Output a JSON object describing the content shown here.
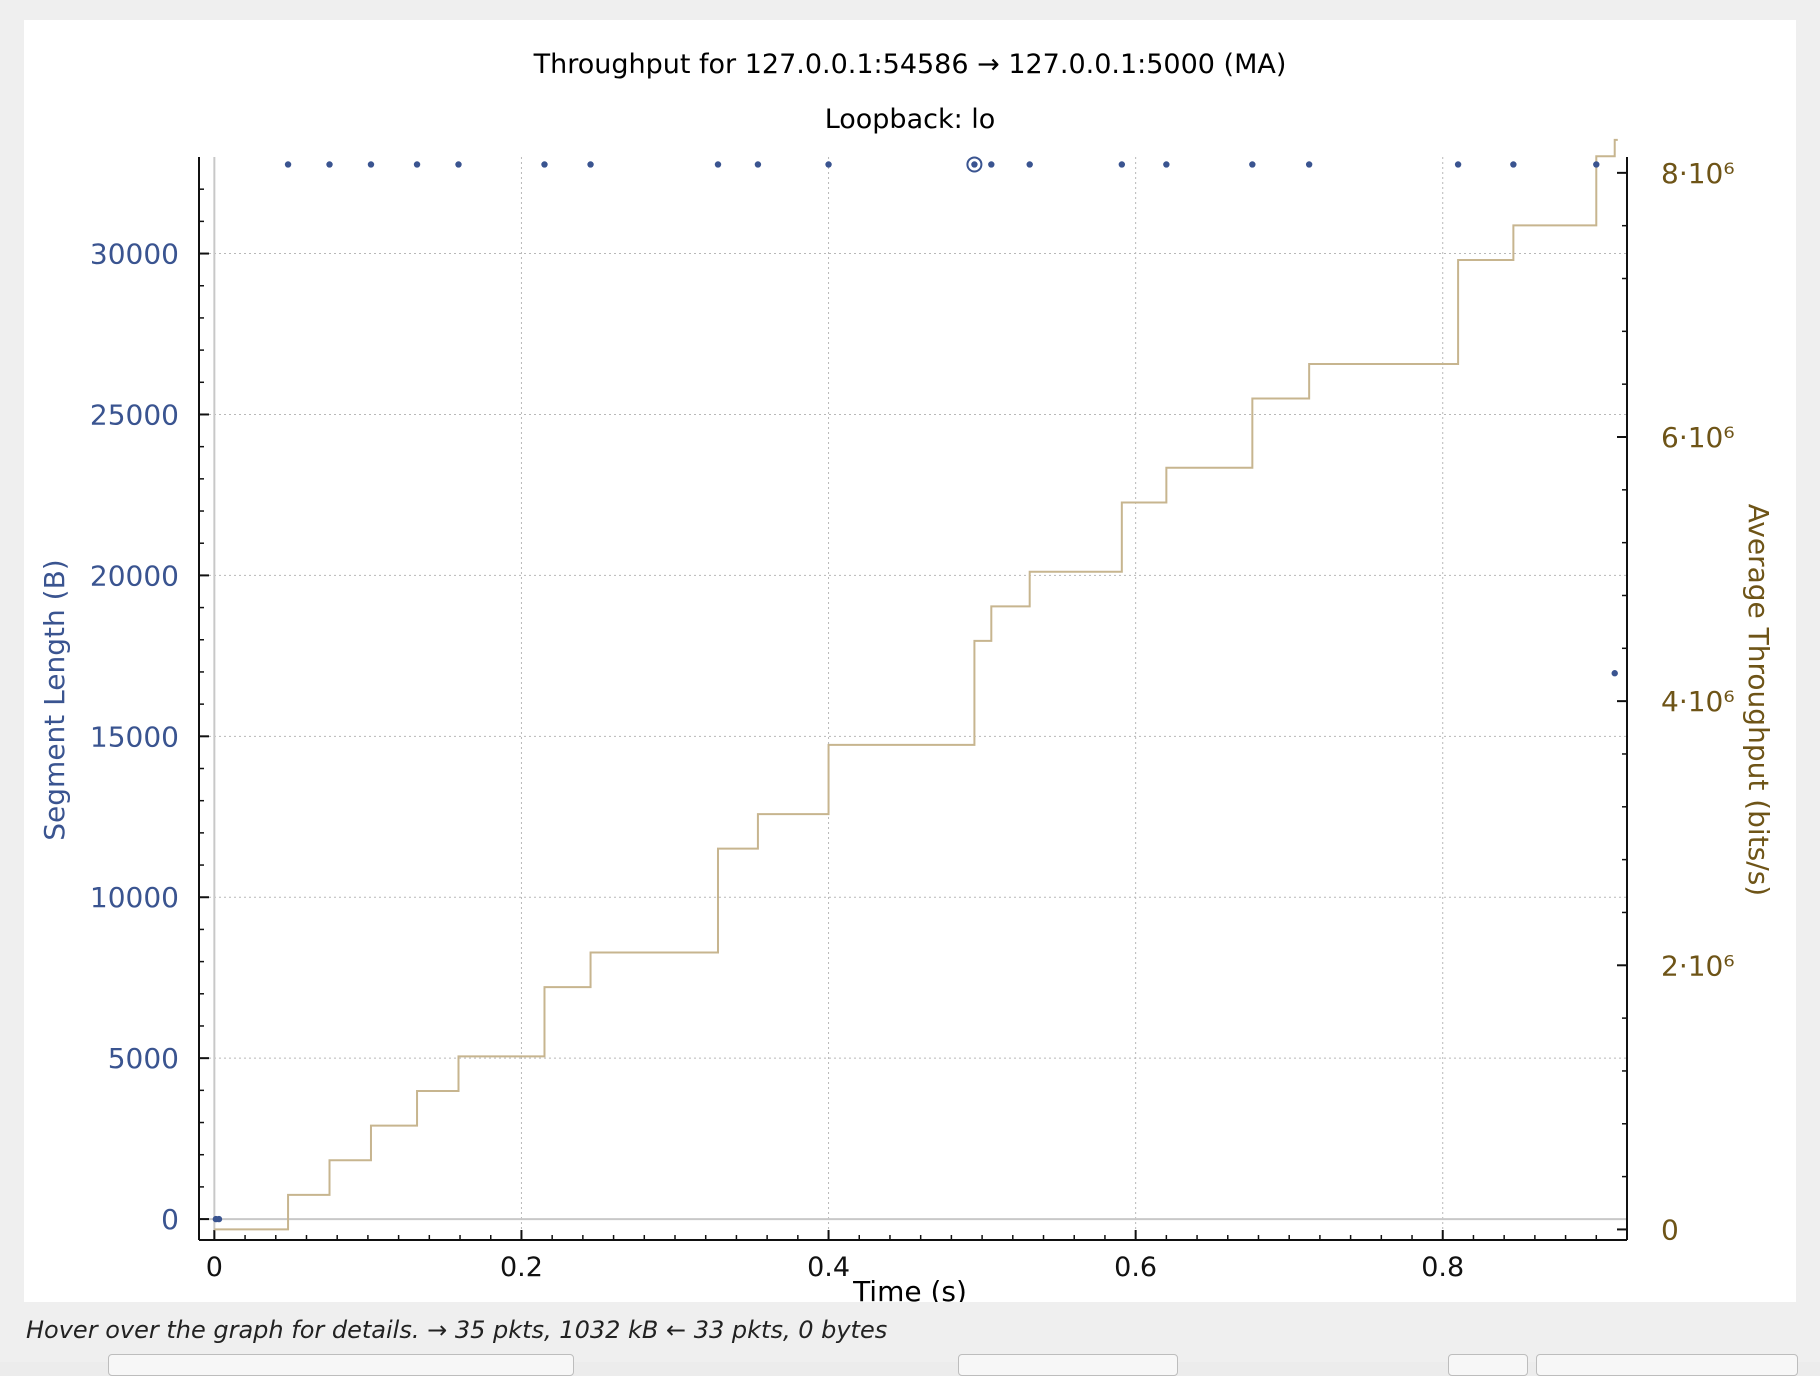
{
  "status_text": "Hover over the graph for details. → 35 pkts, 1032 kB ← 33 pkts, 0 bytes",
  "colors": {
    "segment": "#3a5490",
    "throughput": "#c7b58f",
    "right_axis": "#6e5417",
    "left_axis": "#3a5490",
    "grid": "#b8b8b8"
  },
  "chart_data": {
    "type": "scatter+line",
    "title": "Throughput for 127.0.0.1:54586 → 127.0.0.1:5000 (MA)",
    "subtitle": "Loopback: lo",
    "xlabel": "Time (s)",
    "ylabel_left": "Segment Length (B)",
    "ylabel_right": "Average Throughput (bits/s)",
    "xlim": [
      -0.01,
      0.92
    ],
    "ylim_left": [
      -650,
      33000
    ],
    "ylim_right": [
      -80000,
      8120000
    ],
    "x_ticks": [
      0,
      0.2,
      0.4,
      0.6,
      0.8
    ],
    "x_tick_labels": [
      "0",
      "0.2",
      "0.4",
      "0.6",
      "0.8"
    ],
    "y_left_ticks": [
      0,
      5000,
      10000,
      15000,
      20000,
      25000,
      30000
    ],
    "y_left_tick_labels": [
      "0",
      "5000",
      "10000",
      "15000",
      "20000",
      "25000",
      "30000"
    ],
    "y_right_ticks": [
      0,
      2000000,
      4000000,
      6000000,
      8000000
    ],
    "y_right_tick_labels": [
      "0",
      "2·10⁶",
      "4·10⁶",
      "6·10⁶",
      "8·10⁶"
    ],
    "grid": true,
    "series": [
      {
        "name": "Segment Length",
        "axis": "left",
        "kind": "scatter",
        "x": [
          0.001,
          0.003,
          0.048,
          0.075,
          0.102,
          0.132,
          0.159,
          0.215,
          0.245,
          0.328,
          0.354,
          0.4,
          0.495,
          0.506,
          0.531,
          0.591,
          0.62,
          0.676,
          0.713,
          0.81,
          0.846,
          0.9,
          0.912
        ],
        "y": [
          0,
          0,
          32768,
          32768,
          32768,
          32768,
          32768,
          32768,
          32768,
          32768,
          32768,
          32768,
          32768,
          32768,
          32768,
          32768,
          32768,
          32768,
          32768,
          32768,
          32768,
          32768,
          16960
        ]
      },
      {
        "name": "Average Throughput",
        "axis": "right",
        "kind": "step",
        "x": [
          0,
          0.048,
          0.075,
          0.102,
          0.132,
          0.159,
          0.215,
          0.245,
          0.328,
          0.354,
          0.4,
          0.495,
          0.506,
          0.531,
          0.591,
          0.62,
          0.676,
          0.713,
          0.81,
          0.846,
          0.9,
          0.912,
          0.914
        ],
        "y": [
          0,
          262000,
          524000,
          786000,
          1048000,
          1310000,
          1835000,
          2097000,
          2883000,
          3145000,
          3669000,
          4456000,
          4718000,
          4980000,
          5504000,
          5767000,
          6291000,
          6553000,
          7340000,
          7602000,
          8126000,
          8250000,
          8250000
        ]
      }
    ],
    "highlight_point": {
      "x": 0.495,
      "y": 32768
    }
  }
}
